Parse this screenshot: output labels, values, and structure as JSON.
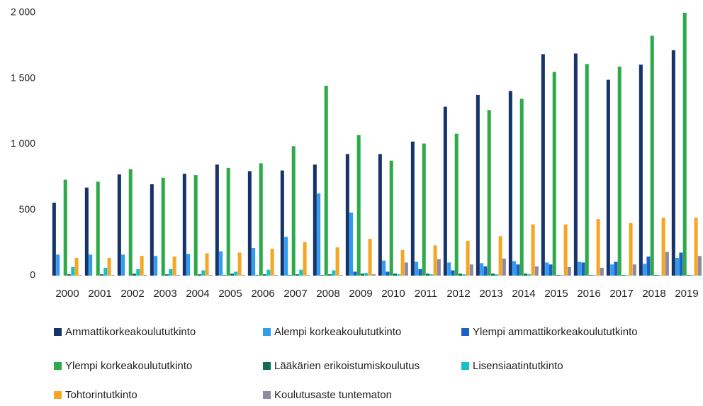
{
  "chart_data": {
    "type": "bar",
    "categories": [
      "2000",
      "2001",
      "2002",
      "2003",
      "2004",
      "2005",
      "2006",
      "2007",
      "2008",
      "2009",
      "2010",
      "2011",
      "2012",
      "2013",
      "2014",
      "2015",
      "2016",
      "2017",
      "2018",
      "2019"
    ],
    "series": [
      {
        "name": "Ammattikorkeakoulututkinto",
        "color": "#17336b",
        "values": [
          555,
          670,
          770,
          695,
          775,
          845,
          795,
          800,
          845,
          925,
          925,
          1020,
          1285,
          1375,
          1405,
          1685,
          1690,
          1490,
          1605,
          1715
        ]
      },
      {
        "name": "Alempi korkeakoulututkinto",
        "color": "#2e9cf0",
        "values": [
          160,
          160,
          160,
          150,
          165,
          185,
          210,
          295,
          625,
          480,
          115,
          105,
          100,
          95,
          110,
          100,
          105,
          85,
          90,
          135
        ]
      },
      {
        "name": "Ylempi ammattikorkeakoulututkinto",
        "color": "#1b5fc7",
        "values": [
          0,
          0,
          0,
          0,
          0,
          5,
          5,
          5,
          5,
          30,
          30,
          50,
          40,
          70,
          85,
          85,
          100,
          105,
          145,
          175
        ]
      },
      {
        "name": "Ylempi korkeakoulututkinto",
        "color": "#2eaa4a",
        "values": [
          730,
          715,
          810,
          745,
          765,
          820,
          855,
          985,
          1445,
          1070,
          875,
          1005,
          1080,
          1260,
          1345,
          1550,
          1610,
          1590,
          1825,
          2000
        ]
      },
      {
        "name": "Lääkärien erikoistumiskoulutus",
        "color": "#0f6b5a",
        "values": [
          10,
          10,
          15,
          10,
          10,
          15,
          10,
          10,
          10,
          15,
          15,
          15,
          15,
          15,
          15,
          5,
          5,
          5,
          5,
          5
        ]
      },
      {
        "name": "Lisensiaatintutkinto",
        "color": "#17c1c8",
        "values": [
          65,
          60,
          50,
          50,
          40,
          30,
          45,
          45,
          40,
          20,
          10,
          10,
          10,
          10,
          10,
          5,
          5,
          5,
          5,
          5
        ]
      },
      {
        "name": "Tohtorintutkinto",
        "color": "#f5a623",
        "values": [
          135,
          135,
          150,
          145,
          170,
          175,
          205,
          255,
          215,
          280,
          195,
          230,
          265,
          300,
          390,
          390,
          430,
          400,
          440,
          440
        ]
      },
      {
        "name": "Koulutusaste tuntematon",
        "color": "#8e8aa6",
        "values": [
          5,
          5,
          5,
          5,
          5,
          5,
          5,
          5,
          5,
          10,
          100,
          125,
          85,
          130,
          70,
          65,
          60,
          85,
          180,
          150
        ]
      }
    ],
    "ylim": [
      0,
      2000
    ],
    "yticks": [
      0,
      500,
      {
        "value": 1000,
        "label": "1 000"
      },
      {
        "value": 1500,
        "label": "1 500"
      },
      {
        "value": 2000,
        "label": "2 000"
      }
    ],
    "grid": false
  }
}
